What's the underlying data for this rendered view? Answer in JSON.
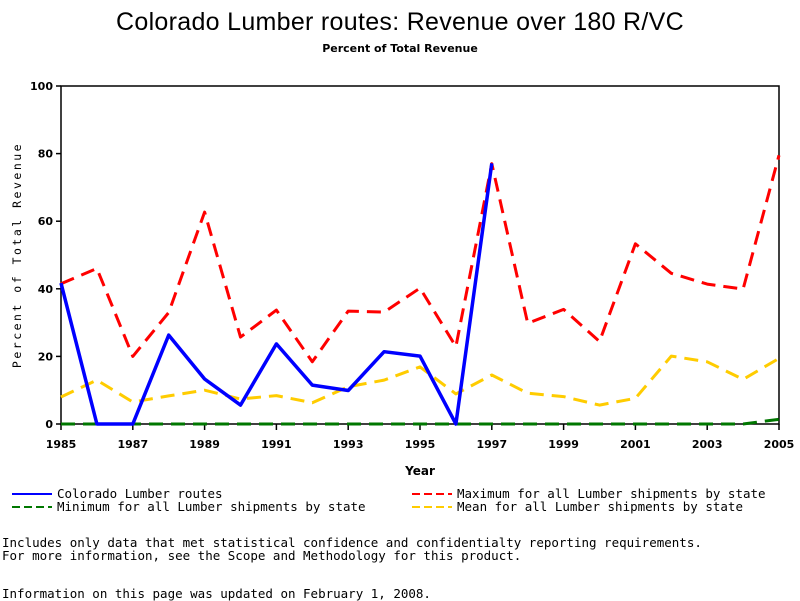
{
  "chart_data": {
    "type": "line",
    "title": "Colorado Lumber routes: Revenue over 180 R/VC",
    "subtitle": "Percent of Total Revenue",
    "xlabel": "Year",
    "ylabel": "Percent of Total Revenue",
    "xlim": [
      1985,
      2005
    ],
    "ylim": [
      0,
      100
    ],
    "x_ticks": [
      "1985",
      "1987",
      "1989",
      "1991",
      "1993",
      "1995",
      "1997",
      "1999",
      "2001",
      "2003",
      "2005"
    ],
    "y_ticks": [
      "0",
      "20",
      "40",
      "60",
      "80",
      "100"
    ],
    "x": [
      1985,
      1986,
      1987,
      1988,
      1989,
      1990,
      1991,
      1992,
      1993,
      1994,
      1995,
      1996,
      1997,
      1998,
      1999,
      2000,
      2001,
      2002,
      2003,
      2004,
      2005
    ],
    "series": [
      {
        "name": "Colorado Lumber routes",
        "color": "#0000ff",
        "style": "solid",
        "values": [
          41.7,
          0,
          0,
          26.3,
          13.3,
          5.6,
          23.7,
          11.5,
          9.9,
          21.4,
          20.1,
          0,
          77.1,
          null,
          null,
          null,
          null,
          null,
          null,
          null,
          null
        ]
      },
      {
        "name": "Maximum for all Lumber shipments by state",
        "color": "#ff0000",
        "style": "dashed",
        "values": [
          41.5,
          46,
          20,
          33,
          62.7,
          25.7,
          33.7,
          18.4,
          33.4,
          33.1,
          40.2,
          22.9,
          77,
          29.8,
          33.9,
          24.4,
          53.3,
          44.6,
          41.4,
          39.9,
          79.5
        ]
      },
      {
        "name": "Minimum for all Lumber shipments by state",
        "color": "#007700",
        "style": "dashed",
        "values": [
          0,
          0,
          0,
          0,
          0,
          0,
          0,
          0,
          0,
          0,
          0,
          0,
          0,
          0,
          0,
          0,
          0,
          0,
          0,
          0,
          1.4
        ]
      },
      {
        "name": "Mean for all Lumber shipments by state",
        "color": "#ffcc00",
        "style": "dashed",
        "values": [
          8,
          13,
          6.5,
          8.3,
          10,
          7.4,
          8.4,
          6.3,
          11,
          13,
          16.9,
          8.9,
          14.5,
          9.1,
          8.1,
          5.6,
          7.6,
          20.1,
          18.4,
          13.2,
          19.4
        ]
      }
    ],
    "legend": "bottom",
    "grid": false
  },
  "legend_items": [
    {
      "label": "Colorado Lumber routes",
      "color": "#0000ff",
      "style": "solid"
    },
    {
      "label": "Maximum for all Lumber shipments by state",
      "color": "#ff0000",
      "style": "dashed"
    },
    {
      "label": "Minimum for all Lumber shipments by state",
      "color": "#007700",
      "style": "dashed"
    },
    {
      "label": "Mean for all Lumber shipments by state",
      "color": "#ffcc00",
      "style": "dashed"
    }
  ],
  "footer": {
    "note_line1": "Includes only data that met statistical confidence and confidentialty reporting requirements.",
    "note_line2": "For more information, see the Scope and Methodology for this product.",
    "updated": "Information on this page was updated on February 1, 2008."
  }
}
